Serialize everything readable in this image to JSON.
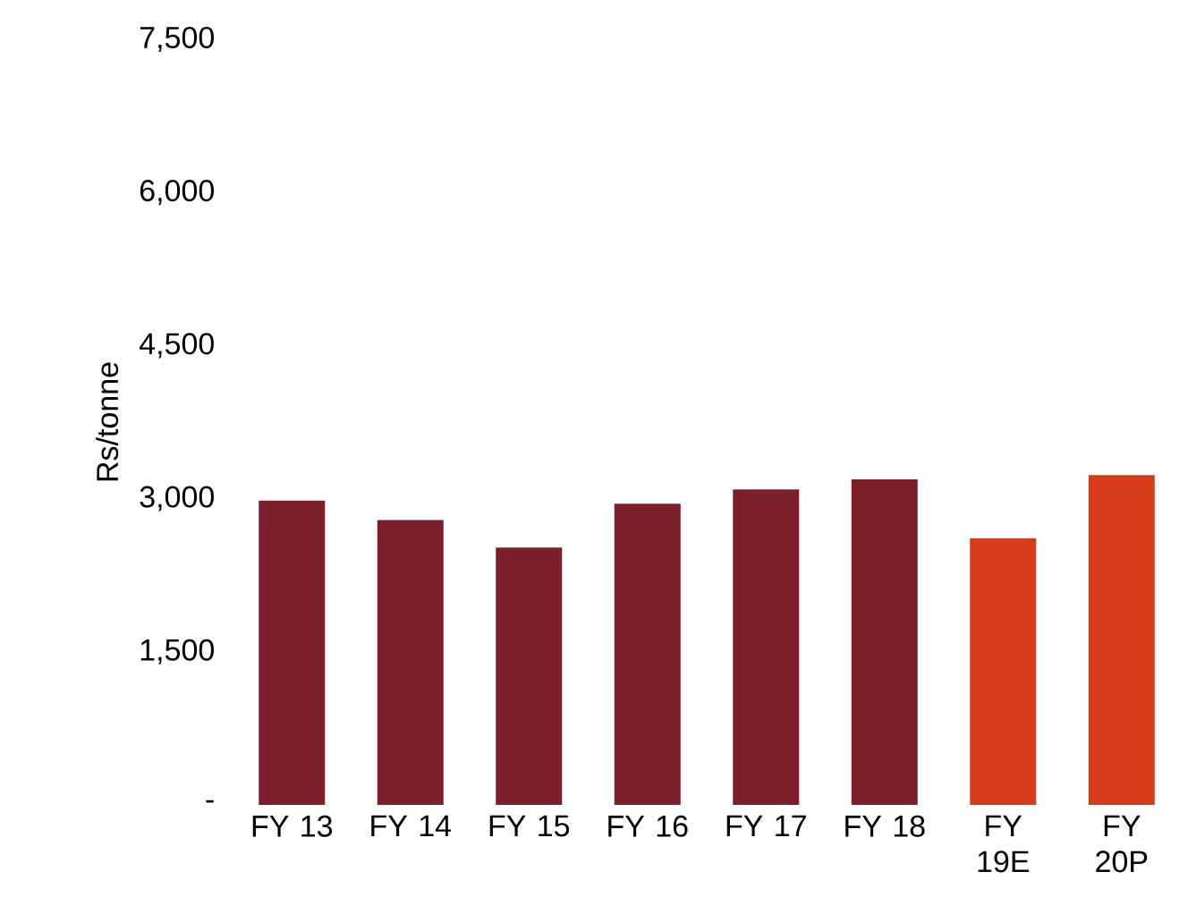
{
  "chart_data": {
    "type": "bar",
    "ylabel": "Rs/tonne",
    "categories": [
      "FY 13",
      "FY 14",
      "FY 15",
      "FY 16",
      "FY 17",
      "FY 18",
      "FY 19E",
      "FY 20P"
    ],
    "values": [
      2980,
      2790,
      2520,
      2950,
      3090,
      3190,
      2610,
      3230
    ],
    "colors": [
      "#7b1f2b",
      "#7b1f2b",
      "#7b1f2b",
      "#7b1f2b",
      "#7b1f2b",
      "#7b1f2b",
      "#d63b1a",
      "#d63b1a"
    ],
    "ylim": [
      0,
      7500
    ],
    "yticks": [
      {
        "value": 0,
        "label": "-"
      },
      {
        "value": 1500,
        "label": "1,500"
      },
      {
        "value": 3000,
        "label": "3,000"
      },
      {
        "value": 4500,
        "label": "4,500"
      },
      {
        "value": 6000,
        "label": "6,000"
      },
      {
        "value": 7500,
        "label": "7,500"
      }
    ],
    "grid": false
  }
}
